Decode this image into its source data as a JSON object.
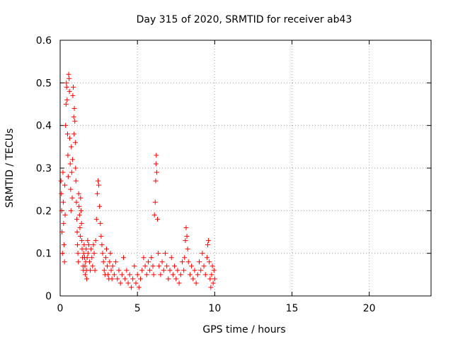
{
  "chart_data": {
    "type": "scatter",
    "title": "Day 315 of 2020, SRMTID for receiver ab43",
    "xlabel": "GPS time / hours",
    "ylabel": "SRMTID / TECUs",
    "xlim": [
      0,
      24
    ],
    "ylim": [
      0,
      0.6
    ],
    "xticks": [
      0,
      5,
      10,
      15,
      20
    ],
    "yticks": [
      0,
      0.1,
      0.2,
      0.3,
      0.4,
      0.5,
      0.6
    ],
    "xtick_labels": [
      "0",
      "5",
      "10",
      "15",
      "20"
    ],
    "ytick_labels": [
      "0",
      "0.1",
      "0.2",
      "0.3",
      "0.4",
      "0.5",
      "0.6"
    ],
    "grid": true,
    "marker": "+",
    "color": "#ff0000",
    "series": [
      {
        "name": "SRMTID",
        "points": [
          [
            0.05,
            0.27
          ],
          [
            0.08,
            0.24
          ],
          [
            0.1,
            0.2
          ],
          [
            0.12,
            0.15
          ],
          [
            0.15,
            0.1
          ],
          [
            0.18,
            0.29
          ],
          [
            0.2,
            0.22
          ],
          [
            0.22,
            0.17
          ],
          [
            0.25,
            0.12
          ],
          [
            0.28,
            0.08
          ],
          [
            0.3,
            0.26
          ],
          [
            0.32,
            0.19
          ],
          [
            0.35,
            0.4
          ],
          [
            0.38,
            0.45
          ],
          [
            0.4,
            0.5
          ],
          [
            0.42,
            0.49
          ],
          [
            0.45,
            0.46
          ],
          [
            0.48,
            0.38
          ],
          [
            0.5,
            0.33
          ],
          [
            0.52,
            0.28
          ],
          [
            0.55,
            0.52
          ],
          [
            0.58,
            0.51
          ],
          [
            0.6,
            0.48
          ],
          [
            0.62,
            0.37
          ],
          [
            0.65,
            0.31
          ],
          [
            0.68,
            0.25
          ],
          [
            0.7,
            0.2
          ],
          [
            0.72,
            0.35
          ],
          [
            0.75,
            0.29
          ],
          [
            0.78,
            0.23
          ],
          [
            0.8,
            0.32
          ],
          [
            0.82,
            0.47
          ],
          [
            0.85,
            0.49
          ],
          [
            0.88,
            0.42
          ],
          [
            0.9,
            0.38
          ],
          [
            0.92,
            0.44
          ],
          [
            0.95,
            0.41
          ],
          [
            0.98,
            0.36
          ],
          [
            1.0,
            0.3
          ],
          [
            1.02,
            0.27
          ],
          [
            1.05,
            0.22
          ],
          [
            1.08,
            0.18
          ],
          [
            1.1,
            0.15
          ],
          [
            1.12,
            0.12
          ],
          [
            1.15,
            0.1
          ],
          [
            1.18,
            0.08
          ],
          [
            1.2,
            0.24
          ],
          [
            1.22,
            0.21
          ],
          [
            1.25,
            0.19
          ],
          [
            1.28,
            0.16
          ],
          [
            1.3,
            0.14
          ],
          [
            1.32,
            0.23
          ],
          [
            1.35,
            0.2
          ],
          [
            1.38,
            0.17
          ],
          [
            1.4,
            0.13
          ],
          [
            1.42,
            0.11
          ],
          [
            1.45,
            0.09
          ],
          [
            1.48,
            0.07
          ],
          [
            1.5,
            0.06
          ],
          [
            1.52,
            0.1
          ],
          [
            1.55,
            0.12
          ],
          [
            1.58,
            0.09
          ],
          [
            1.6,
            0.07
          ],
          [
            1.62,
            0.05
          ],
          [
            1.65,
            0.08
          ],
          [
            1.68,
            0.11
          ],
          [
            1.7,
            0.06
          ],
          [
            1.72,
            0.04
          ],
          [
            1.75,
            0.09
          ],
          [
            1.78,
            0.13
          ],
          [
            1.8,
            0.1
          ],
          [
            1.85,
            0.12
          ],
          [
            1.9,
            0.08
          ],
          [
            1.95,
            0.06
          ],
          [
            2.0,
            0.11
          ],
          [
            2.05,
            0.09
          ],
          [
            2.1,
            0.07
          ],
          [
            2.15,
            0.12
          ],
          [
            2.2,
            0.1
          ],
          [
            2.25,
            0.06
          ],
          [
            2.3,
            0.13
          ],
          [
            2.35,
            0.18
          ],
          [
            2.4,
            0.24
          ],
          [
            2.45,
            0.27
          ],
          [
            2.5,
            0.26
          ],
          [
            2.55,
            0.21
          ],
          [
            2.6,
            0.17
          ],
          [
            2.65,
            0.14
          ],
          [
            2.7,
            0.12
          ],
          [
            2.75,
            0.1
          ],
          [
            2.8,
            0.08
          ],
          [
            2.85,
            0.06
          ],
          [
            2.9,
            0.05
          ],
          [
            2.95,
            0.09
          ],
          [
            3.0,
            0.11
          ],
          [
            3.05,
            0.07
          ],
          [
            3.1,
            0.05
          ],
          [
            3.15,
            0.04
          ],
          [
            3.2,
            0.08
          ],
          [
            3.25,
            0.1
          ],
          [
            3.3,
            0.06
          ],
          [
            3.35,
            0.04
          ],
          [
            3.4,
            0.07
          ],
          [
            3.5,
            0.05
          ],
          [
            3.6,
            0.08
          ],
          [
            3.7,
            0.04
          ],
          [
            3.8,
            0.06
          ],
          [
            3.9,
            0.03
          ],
          [
            4.0,
            0.05
          ],
          [
            4.1,
            0.09
          ],
          [
            4.2,
            0.04
          ],
          [
            4.3,
            0.06
          ],
          [
            4.4,
            0.03
          ],
          [
            4.5,
            0.05
          ],
          [
            4.6,
            0.02
          ],
          [
            4.7,
            0.04
          ],
          [
            4.8,
            0.07
          ],
          [
            4.9,
            0.03
          ],
          [
            5.0,
            0.05
          ],
          [
            5.1,
            0.02
          ],
          [
            5.2,
            0.04
          ],
          [
            5.3,
            0.06
          ],
          [
            5.4,
            0.09
          ],
          [
            5.5,
            0.07
          ],
          [
            5.6,
            0.05
          ],
          [
            5.7,
            0.08
          ],
          [
            5.8,
            0.06
          ],
          [
            5.9,
            0.09
          ],
          [
            6.0,
            0.07
          ],
          [
            6.05,
            0.05
          ],
          [
            6.1,
            0.19
          ],
          [
            6.15,
            0.22
          ],
          [
            6.18,
            0.27
          ],
          [
            6.2,
            0.31
          ],
          [
            6.22,
            0.33
          ],
          [
            6.25,
            0.29
          ],
          [
            6.3,
            0.18
          ],
          [
            6.35,
            0.1
          ],
          [
            6.4,
            0.07
          ],
          [
            6.5,
            0.05
          ],
          [
            6.6,
            0.08
          ],
          [
            6.7,
            0.06
          ],
          [
            6.8,
            0.1
          ],
          [
            6.9,
            0.07
          ],
          [
            7.0,
            0.04
          ],
          [
            7.1,
            0.06
          ],
          [
            7.2,
            0.09
          ],
          [
            7.3,
            0.05
          ],
          [
            7.4,
            0.07
          ],
          [
            7.5,
            0.04
          ],
          [
            7.6,
            0.06
          ],
          [
            7.7,
            0.03
          ],
          [
            7.8,
            0.05
          ],
          [
            7.9,
            0.08
          ],
          [
            8.0,
            0.06
          ],
          [
            8.05,
            0.09
          ],
          [
            8.1,
            0.13
          ],
          [
            8.15,
            0.16
          ],
          [
            8.2,
            0.14
          ],
          [
            8.25,
            0.11
          ],
          [
            8.3,
            0.08
          ],
          [
            8.4,
            0.05
          ],
          [
            8.5,
            0.07
          ],
          [
            8.6,
            0.04
          ],
          [
            8.7,
            0.06
          ],
          [
            8.8,
            0.03
          ],
          [
            8.9,
            0.05
          ],
          [
            9.0,
            0.08
          ],
          [
            9.1,
            0.06
          ],
          [
            9.2,
            0.1
          ],
          [
            9.3,
            0.07
          ],
          [
            9.4,
            0.05
          ],
          [
            9.5,
            0.09
          ],
          [
            9.55,
            0.12
          ],
          [
            9.6,
            0.13
          ],
          [
            9.65,
            0.08
          ],
          [
            9.7,
            0.04
          ],
          [
            9.75,
            0.02
          ],
          [
            9.8,
            0.05
          ],
          [
            9.85,
            0.07
          ],
          [
            9.9,
            0.03
          ],
          [
            9.95,
            0.06
          ],
          [
            10.0,
            0.04
          ]
        ]
      }
    ]
  }
}
